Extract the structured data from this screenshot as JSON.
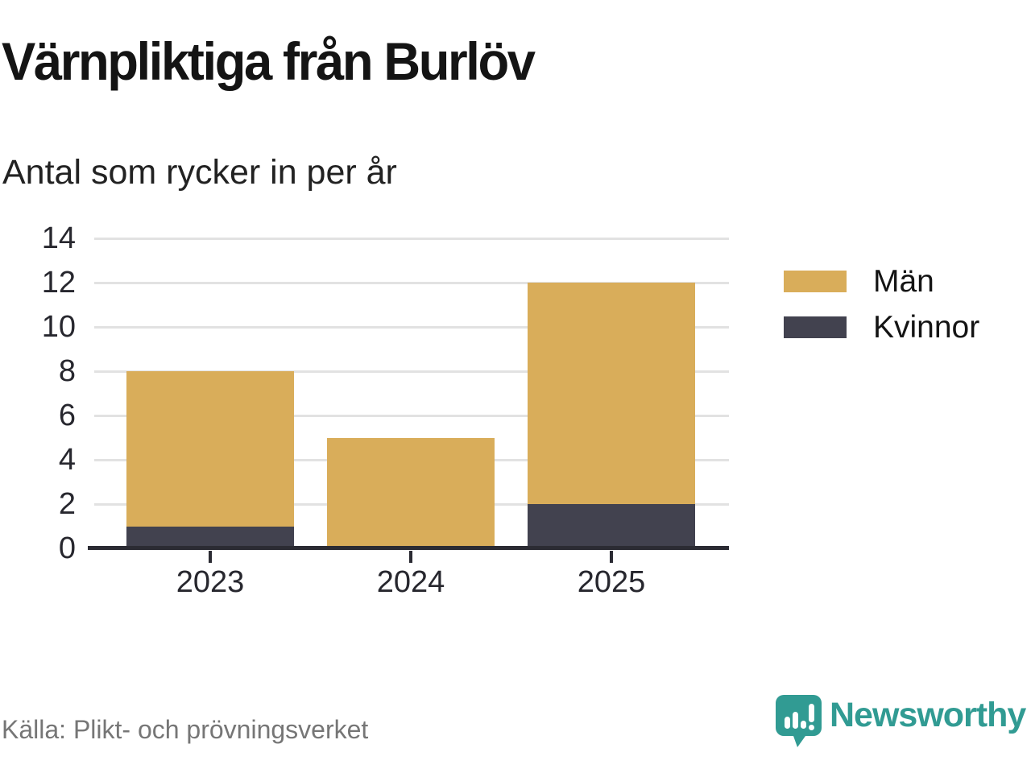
{
  "title": "Värnpliktiga från Burlöv",
  "subtitle": "Antal som rycker in per år",
  "source_note": "Källa: Plikt- och prövningsverket",
  "branding": {
    "wordmark": "Newsworthy",
    "icon": "newsworthy-speech-bubble-chart-icon",
    "color": "#319b93"
  },
  "colors": {
    "men": "#d9ad5a",
    "women": "#42424f",
    "axis": "#2b2b33",
    "grid": "#e2e2e2",
    "title_text": "#141414",
    "tick_text": "#27272e",
    "source_text": "#767676",
    "background": "#ffffff"
  },
  "chart_data": {
    "type": "bar",
    "stacked": true,
    "title": "Värnpliktiga från Burlöv",
    "subtitle": "Antal som rycker in per år",
    "categories": [
      "2023",
      "2024",
      "2025"
    ],
    "series": [
      {
        "name": "Män",
        "color": "#d9ad5a",
        "values": [
          7,
          5,
          10
        ]
      },
      {
        "name": "Kvinnor",
        "color": "#42424f",
        "values": [
          1,
          0,
          2
        ]
      }
    ],
    "stack_order_bottom_to_top": [
      "Kvinnor",
      "Män"
    ],
    "stack_totals": [
      8,
      5,
      12
    ],
    "ylim": [
      0,
      14
    ],
    "yticks": [
      0,
      2,
      4,
      6,
      8,
      10,
      12,
      14
    ],
    "grid": true,
    "legend_position": "right",
    "xlabel": "",
    "ylabel": ""
  }
}
